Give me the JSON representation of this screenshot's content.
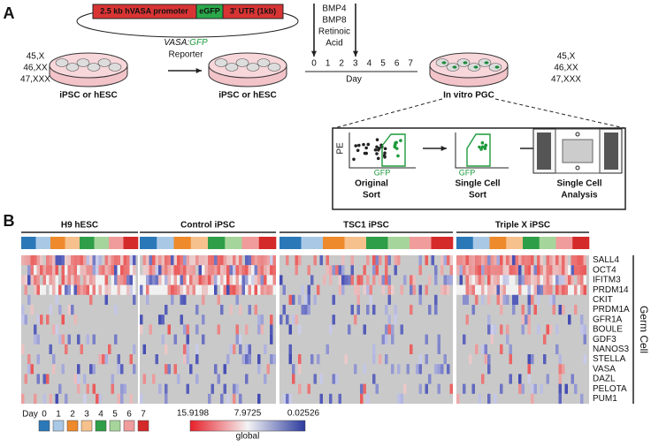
{
  "panel_a": {
    "label": "A",
    "construct": {
      "promoter": "2.5 kb hVASA promoter",
      "reporter": "eGFP",
      "utr": "3' UTR (1kb)"
    },
    "karyotypes_left": [
      "45,X",
      "46,XX",
      "47,XXX"
    ],
    "dish_label_1": "iPSC or hESC",
    "reporter_label": {
      "gene": "VASA:",
      "tag": "GFP",
      "text": "Reporter"
    },
    "dish_label_2": "iPSC or hESC",
    "factors": [
      "BMP4",
      "BMP8",
      "Retinoic",
      "Acid"
    ],
    "days": [
      0,
      1,
      2,
      3,
      4,
      5,
      6,
      7
    ],
    "day_label": "Day",
    "dish_label_3": "In vitro PGC",
    "karyotypes_right": [
      "45,X",
      "46,XX",
      "47,XXX"
    ],
    "sort": {
      "y_axis": "PE",
      "steps": [
        {
          "x_axis": "GFP",
          "title": [
            "Original",
            "Sort"
          ]
        },
        {
          "x_axis": "GFP",
          "title": [
            "Single Cell",
            "Sort"
          ]
        },
        {
          "title": [
            "Single Cell",
            "Analysis"
          ]
        }
      ]
    }
  },
  "panel_b": {
    "label": "B",
    "groups": [
      "H9 hESC",
      "Control iPSC",
      "TSC1 iPSC",
      "Triple X iPSC"
    ],
    "genes": [
      "SALL4",
      "OCT4",
      "IFITM3",
      "PRDM14",
      "CKIT",
      "PRDM1A",
      "GFR1A",
      "BOULE",
      "GDF3",
      "NANOS3",
      "STELLA",
      "VASA",
      "DAZL",
      "PELOTA",
      "PUM1"
    ],
    "gene_set": "Germ Cell",
    "legend": {
      "title": "Day",
      "days": [
        {
          "label": 0,
          "color": "#2b78b8"
        },
        {
          "label": 1,
          "color": "#a9c8e6"
        },
        {
          "label": 2,
          "color": "#ee8a2c"
        },
        {
          "label": 3,
          "color": "#f6c18c"
        },
        {
          "label": 4,
          "color": "#2f9e48"
        },
        {
          "label": 5,
          "color": "#a6d59b"
        },
        {
          "label": 6,
          "color": "#f09c9c"
        },
        {
          "label": 7,
          "color": "#d42a2a"
        }
      ]
    },
    "colorbar": {
      "ticks": [
        15.9198,
        7.9725,
        0.02526
      ],
      "title": "global"
    }
  }
}
